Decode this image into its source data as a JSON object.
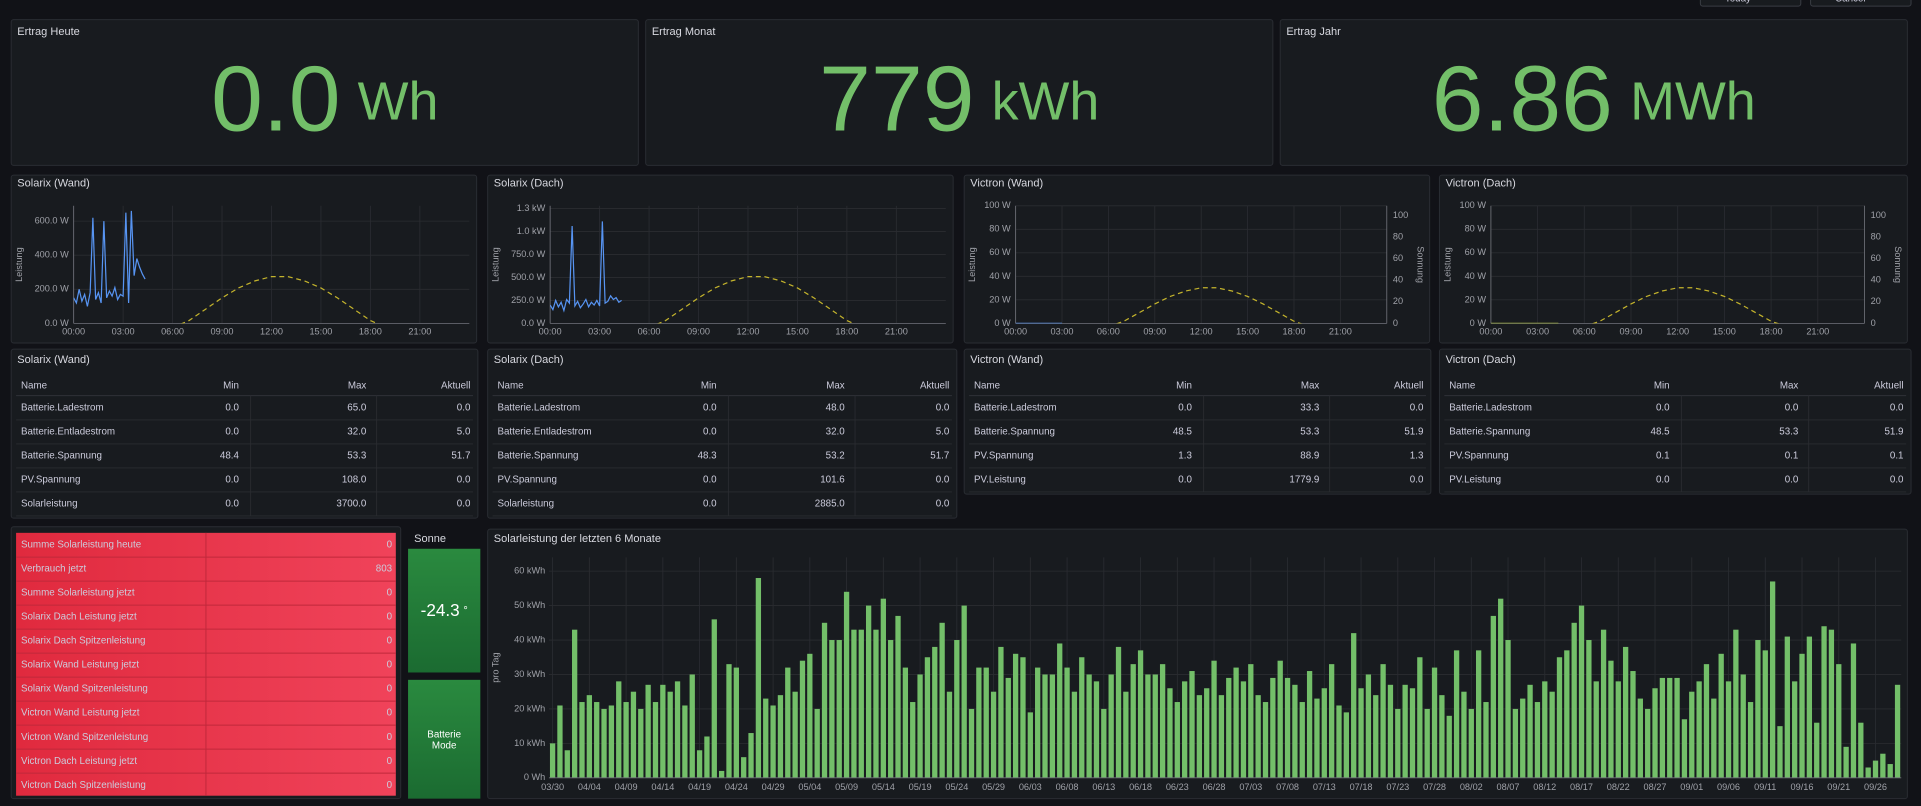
{
  "toolbar": {
    "buttons": [
      "Today",
      "Cancel"
    ]
  },
  "stats": [
    {
      "title": "Ertrag Heute",
      "value": "0.0",
      "unit": "Wh"
    },
    {
      "title": "Ertrag Monat",
      "value": "779",
      "unit": "kWh"
    },
    {
      "title": "Ertrag Jahr",
      "value": "6.86",
      "unit": "MWh"
    }
  ],
  "chart_data": [
    {
      "type": "line",
      "title": "Solarix (Wand)",
      "ylabel": "Leistung",
      "xlim": [
        "00:00",
        "24:00"
      ],
      "xticks": [
        "00:00",
        "03:00",
        "06:00",
        "09:00",
        "12:00",
        "15:00",
        "18:00",
        "21:00"
      ],
      "ylim": [
        0,
        690
      ],
      "yticks": [
        {
          "value": 0,
          "label": "0.0 W"
        },
        {
          "value": 200,
          "label": "200.0 W"
        },
        {
          "value": 400,
          "label": "400.0 W"
        },
        {
          "value": 600,
          "label": "600.0 W"
        }
      ],
      "y2lim": [
        0,
        83
      ],
      "grid": true,
      "series": [
        {
          "color": "#5794f2",
          "x": [
            "00:00",
            "00:10",
            "00:20",
            "00:30",
            "00:40",
            "00:50",
            "01:00",
            "01:10",
            "01:20",
            "01:30",
            "01:40",
            "01:50",
            "02:00",
            "02:10",
            "02:20",
            "02:30",
            "02:40",
            "02:50",
            "03:00",
            "03:10",
            "03:20",
            "03:30",
            "03:40",
            "03:50",
            "04:00",
            "04:10",
            "04:20"
          ],
          "values": [
            150,
            120,
            200,
            130,
            170,
            100,
            180,
            620,
            140,
            180,
            120,
            600,
            150,
            190,
            160,
            210,
            140,
            170,
            160,
            650,
            120,
            660,
            280,
            380,
            330,
            290,
            260
          ]
        },
        {
          "color": "#c3b32c",
          "dash": true,
          "axis": "y2",
          "x": [
            "06:00",
            "07:00",
            "08:00",
            "09:00",
            "10:00",
            "11:00",
            "12:00",
            "13:00",
            "14:00",
            "15:00",
            "16:00",
            "17:00",
            "18:00",
            "19:00"
          ],
          "values": [
            -3,
            2,
            10,
            18,
            25,
            30,
            33,
            33,
            30,
            25,
            18,
            10,
            2,
            -3
          ]
        }
      ]
    },
    {
      "type": "line",
      "title": "Solarix (Dach)",
      "ylabel": "Leistung",
      "xlim": [
        "00:00",
        "24:00"
      ],
      "xticks": [
        "00:00",
        "03:00",
        "06:00",
        "09:00",
        "12:00",
        "15:00",
        "18:00",
        "21:00"
      ],
      "ylim": [
        0,
        1280
      ],
      "yticks": [
        {
          "value": 0,
          "label": "0.0 W"
        },
        {
          "value": 250,
          "label": "250.0 W"
        },
        {
          "value": 500,
          "label": "500.0 W"
        },
        {
          "value": 750,
          "label": "750.0 W"
        },
        {
          "value": 1000,
          "label": "1.0 kW"
        },
        {
          "value": 1250,
          "label": "1.3 kW"
        }
      ],
      "y2lim": [
        0,
        83
      ],
      "grid": true,
      "series": [
        {
          "color": "#5794f2",
          "x": [
            "00:00",
            "00:10",
            "00:20",
            "00:30",
            "00:40",
            "00:50",
            "01:00",
            "01:10",
            "01:20",
            "01:30",
            "01:40",
            "01:50",
            "02:00",
            "02:10",
            "02:20",
            "02:30",
            "02:40",
            "02:50",
            "03:00",
            "03:10",
            "03:20",
            "03:30",
            "03:40",
            "03:50",
            "04:00",
            "04:10",
            "04:20"
          ],
          "values": [
            200,
            150,
            250,
            180,
            230,
            140,
            260,
            220,
            1060,
            190,
            240,
            170,
            210,
            260,
            180,
            230,
            200,
            250,
            190,
            1110,
            220,
            240,
            300,
            260,
            280,
            230,
            250
          ]
        },
        {
          "color": "#c3b32c",
          "dash": true,
          "axis": "y2",
          "x": [
            "06:00",
            "07:00",
            "08:00",
            "09:00",
            "10:00",
            "11:00",
            "12:00",
            "13:00",
            "14:00",
            "15:00",
            "16:00",
            "17:00",
            "18:00",
            "19:00"
          ],
          "values": [
            -3,
            2,
            10,
            18,
            25,
            30,
            33,
            33,
            30,
            25,
            18,
            10,
            2,
            -3
          ]
        }
      ]
    },
    {
      "type": "line",
      "title": "Victron (Wand)",
      "ylabel": "Leistung",
      "y2label": "Sonnung",
      "xlim": [
        "00:00",
        "24:00"
      ],
      "xticks": [
        "00:00",
        "03:00",
        "06:00",
        "09:00",
        "12:00",
        "15:00",
        "18:00",
        "21:00"
      ],
      "ylim": [
        0,
        100
      ],
      "yticks": [
        {
          "value": 0,
          "label": "0 W"
        },
        {
          "value": 20,
          "label": "20 W"
        },
        {
          "value": 40,
          "label": "40 W"
        },
        {
          "value": 60,
          "label": "60 W"
        },
        {
          "value": 80,
          "label": "80 W"
        },
        {
          "value": 100,
          "label": "100 W"
        }
      ],
      "y2lim": [
        0,
        109
      ],
      "y2ticks": [
        0,
        20,
        40,
        60,
        80,
        100
      ],
      "grid": true,
      "series": [
        {
          "color": "#5794f2",
          "x": [
            "00:00",
            "01:00",
            "02:00",
            "03:00"
          ],
          "values": [
            0,
            0,
            0,
            0
          ]
        },
        {
          "color": "#c3b32c",
          "dash": true,
          "axis": "y2",
          "x": [
            "06:00",
            "07:00",
            "08:00",
            "09:00",
            "10:00",
            "11:00",
            "12:00",
            "13:00",
            "14:00",
            "15:00",
            "16:00",
            "17:00",
            "18:00",
            "19:00"
          ],
          "values": [
            -3,
            2,
            10,
            18,
            25,
            30,
            33,
            33,
            30,
            25,
            18,
            10,
            2,
            -3
          ]
        }
      ]
    },
    {
      "type": "line",
      "title": "Victron (Dach)",
      "ylabel": "Leistung",
      "y2label": "Sonnung",
      "xlim": [
        "00:00",
        "24:00"
      ],
      "xticks": [
        "00:00",
        "03:00",
        "06:00",
        "09:00",
        "12:00",
        "15:00",
        "18:00",
        "21:00"
      ],
      "ylim": [
        0,
        100
      ],
      "yticks": [
        {
          "value": 0,
          "label": "0 W"
        },
        {
          "value": 20,
          "label": "20 W"
        },
        {
          "value": 40,
          "label": "40 W"
        },
        {
          "value": 60,
          "label": "60 W"
        },
        {
          "value": 80,
          "label": "80 W"
        },
        {
          "value": 100,
          "label": "100 W"
        }
      ],
      "y2lim": [
        0,
        109
      ],
      "y2ticks": [
        0,
        20,
        40,
        60,
        80,
        100
      ],
      "grid": true,
      "series": [
        {
          "color": "#a9b840",
          "x": [
            "00:00",
            "01:00",
            "02:00",
            "03:00",
            "04:00",
            "04:20"
          ],
          "values": [
            0,
            0,
            0,
            0,
            0,
            0
          ]
        },
        {
          "color": "#c3b32c",
          "dash": true,
          "axis": "y2",
          "x": [
            "06:00",
            "07:00",
            "08:00",
            "09:00",
            "10:00",
            "11:00",
            "12:00",
            "13:00",
            "14:00",
            "15:00",
            "16:00",
            "17:00",
            "18:00",
            "19:00"
          ],
          "values": [
            -3,
            2,
            10,
            18,
            25,
            30,
            33,
            33,
            30,
            25,
            18,
            10,
            2,
            -3
          ]
        }
      ]
    },
    {
      "type": "bar",
      "title": "Solarleistung der letzten 6 Monate",
      "ylabel": "pro Tag",
      "color": "#73bf69",
      "grid": true,
      "ylim": [
        0,
        64
      ],
      "yticks": [
        {
          "value": 0,
          "label": "0 Wh"
        },
        {
          "value": 10,
          "label": "10 kWh"
        },
        {
          "value": 20,
          "label": "20 kWh"
        },
        {
          "value": 30,
          "label": "30 kWh"
        },
        {
          "value": 40,
          "label": "40 kWh"
        },
        {
          "value": 50,
          "label": "50 kWh"
        },
        {
          "value": 60,
          "label": "60 kWh"
        }
      ],
      "categories": [
        "03/30",
        null,
        null,
        null,
        null,
        "04/04",
        null,
        null,
        null,
        null,
        "04/09",
        null,
        null,
        null,
        null,
        "04/14",
        null,
        null,
        null,
        null,
        "04/19",
        null,
        null,
        null,
        null,
        "04/24",
        null,
        null,
        null,
        null,
        "04/29",
        null,
        null,
        null,
        null,
        "05/04",
        null,
        null,
        null,
        null,
        "05/09",
        null,
        null,
        null,
        null,
        "05/14",
        null,
        null,
        null,
        null,
        "05/19",
        null,
        null,
        null,
        null,
        "05/24",
        null,
        null,
        null,
        null,
        "05/29",
        null,
        null,
        null,
        null,
        "06/03",
        null,
        null,
        null,
        null,
        "06/08",
        null,
        null,
        null,
        null,
        "06/13",
        null,
        null,
        null,
        null,
        "06/18",
        null,
        null,
        null,
        null,
        "06/23",
        null,
        null,
        null,
        null,
        "06/28",
        null,
        null,
        null,
        null,
        "07/03",
        null,
        null,
        null,
        null,
        "07/08",
        null,
        null,
        null,
        null,
        "07/13",
        null,
        null,
        null,
        null,
        "07/18",
        null,
        null,
        null,
        null,
        "07/23",
        null,
        null,
        null,
        null,
        "07/28",
        null,
        null,
        null,
        null,
        "08/02",
        null,
        null,
        null,
        null,
        "08/07",
        null,
        null,
        null,
        null,
        "08/12",
        null,
        null,
        null,
        null,
        "08/17",
        null,
        null,
        null,
        null,
        "08/22",
        null,
        null,
        null,
        null,
        "08/27",
        null,
        null,
        null,
        null,
        "09/01",
        null,
        null,
        null,
        null,
        "09/06",
        null,
        null,
        null,
        null,
        "09/11",
        null,
        null,
        null,
        null,
        "09/16",
        null,
        null,
        null,
        null,
        "09/21",
        null,
        null,
        null,
        null,
        "09/26",
        null,
        null,
        null
      ],
      "values": [
        10,
        21,
        8,
        43,
        22,
        24,
        22,
        20,
        21,
        28,
        22,
        25,
        20,
        27,
        22,
        27,
        25,
        28,
        21,
        30,
        8,
        12,
        46,
        2,
        33,
        32,
        6,
        13,
        58,
        23,
        21,
        24,
        32,
        25,
        34,
        36,
        20,
        45,
        40,
        40,
        54,
        43,
        43,
        50,
        43,
        52,
        40,
        47,
        32,
        22,
        30,
        35,
        38,
        45,
        25,
        40,
        50,
        20,
        32,
        32,
        25,
        38,
        29,
        36,
        35,
        19,
        32,
        30,
        30,
        39,
        32,
        25,
        35,
        30,
        28,
        20,
        30,
        38,
        25,
        33,
        37,
        30,
        30,
        33,
        26,
        22,
        28,
        31,
        24,
        26,
        34,
        24,
        29,
        32,
        28,
        33,
        24,
        22,
        29,
        34,
        29,
        27,
        22,
        31,
        23,
        26,
        33,
        21,
        19,
        42,
        26,
        30,
        24,
        33,
        27,
        20,
        27,
        26,
        35,
        20,
        32,
        24,
        18,
        37,
        25,
        20,
        37,
        22,
        47,
        52,
        40,
        20,
        23,
        27,
        22,
        28,
        25,
        35,
        37,
        45,
        50,
        40,
        28,
        43,
        34,
        28,
        38,
        31,
        23,
        20,
        26,
        29,
        29,
        29,
        17,
        25,
        28,
        33,
        23,
        36,
        28,
        43,
        30,
        22,
        40,
        37,
        57,
        15,
        41,
        28,
        36,
        41,
        16,
        44,
        43,
        33,
        9,
        39,
        16,
        3,
        5,
        7,
        4,
        27
      ]
    }
  ],
  "tables": [
    {
      "title": "Solarix (Wand)",
      "columns": [
        "Name",
        "Min",
        "Max",
        "Aktuell"
      ],
      "rows": [
        [
          "Batterie.Ladestrom",
          "0.0",
          "65.0",
          "0.0"
        ],
        [
          "Batterie.Entladestrom",
          "0.0",
          "32.0",
          "5.0"
        ],
        [
          "Batterie.Spannung",
          "48.4",
          "53.3",
          "51.7"
        ],
        [
          "PV.Spannung",
          "0.0",
          "108.0",
          "0.0"
        ],
        [
          "Solarleistung",
          "0.0",
          "3700.0",
          "0.0"
        ]
      ]
    },
    {
      "title": "Solarix (Dach)",
      "columns": [
        "Name",
        "Min",
        "Max",
        "Aktuell"
      ],
      "rows": [
        [
          "Batterie.Ladestrom",
          "0.0",
          "48.0",
          "0.0"
        ],
        [
          "Batterie.Entladestrom",
          "0.0",
          "32.0",
          "5.0"
        ],
        [
          "Batterie.Spannung",
          "48.3",
          "53.2",
          "51.7"
        ],
        [
          "PV.Spannung",
          "0.0",
          "101.6",
          "0.0"
        ],
        [
          "Solarleistung",
          "0.0",
          "2885.0",
          "0.0"
        ]
      ]
    },
    {
      "title": "Victron (Wand)",
      "columns": [
        "Name",
        "Min",
        "Max",
        "Aktuell"
      ],
      "rows": [
        [
          "Batterie.Ladestrom",
          "0.0",
          "33.3",
          "0.0"
        ],
        [
          "Batterie.Spannung",
          "48.5",
          "53.3",
          "51.9"
        ],
        [
          "PV.Spannung",
          "1.3",
          "88.9",
          "1.3"
        ],
        [
          "PV.Leistung",
          "0.0",
          "1779.9",
          "0.0"
        ]
      ]
    },
    {
      "title": "Victron (Dach)",
      "columns": [
        "Name",
        "Min",
        "Max",
        "Aktuell"
      ],
      "rows": [
        [
          "Batterie.Ladestrom",
          "0.0",
          "0.0",
          "0.0"
        ],
        [
          "Batterie.Spannung",
          "48.5",
          "53.3",
          "51.9"
        ],
        [
          "PV.Spannung",
          "0.1",
          "0.1",
          "0.1"
        ],
        [
          "PV.Leistung",
          "0.0",
          "0.0",
          "0.0"
        ]
      ]
    }
  ],
  "summary": {
    "rows": [
      [
        "Summe Solarleistung heute",
        "0"
      ],
      [
        "Verbrauch jetzt",
        "803"
      ],
      [
        "Summe Solarleistung jetzt",
        "0"
      ],
      [
        "Solarix Dach Leistung jetzt",
        "0"
      ],
      [
        "Solarix Dach Spitzenleistung",
        "0"
      ],
      [
        "Solarix Wand Leistung jetzt",
        "0"
      ],
      [
        "Solarix Wand Spitzenleistung",
        "0"
      ],
      [
        "Victron Wand Leistung jetzt",
        "0"
      ],
      [
        "Victron Wand Spitzenleistung",
        "0"
      ],
      [
        "Victron Dach Leistung jetzt",
        "0"
      ],
      [
        "Victron Dach Spitzenleistung",
        "0"
      ]
    ]
  },
  "sun": {
    "title": "Sonne",
    "value": "-24.3",
    "unit": "°",
    "mode": "Batterie Mode"
  }
}
